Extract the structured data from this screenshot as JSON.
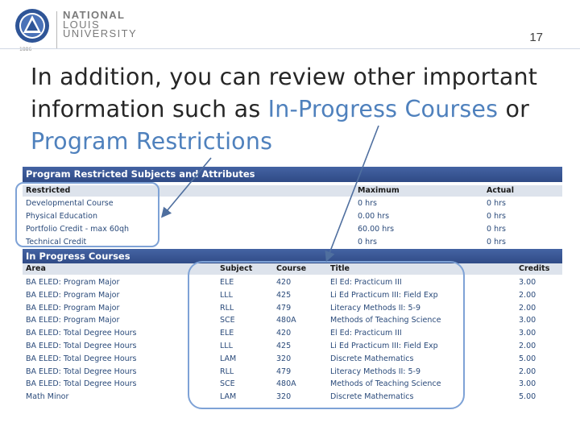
{
  "logo": {
    "line1": "NATIONAL",
    "line2": "LOUIS",
    "line3": "UNIVERSITY",
    "year": "1886",
    "emblem_color": "#2f5597"
  },
  "slide_number": "17",
  "heading": {
    "part1": "In addition, you can review other important information such as ",
    "link1": "In-Progress Courses",
    "part2": " or ",
    "link2": "Program Restrictions",
    "accent_color": "#4f81bd"
  },
  "restricted": {
    "title": "Program Restricted Subjects and Attributes",
    "columns": [
      "Restricted",
      "Maximum",
      "Actual"
    ],
    "rows": [
      {
        "restricted": "Developmental Course",
        "maximum": "0 hrs",
        "actual": "0 hrs"
      },
      {
        "restricted": "Physical Education",
        "maximum": "0.00 hrs",
        "actual": "0 hrs"
      },
      {
        "restricted": "Portfolio Credit - max 60qh",
        "maximum": "60.00 hrs",
        "actual": "0 hrs"
      },
      {
        "restricted": "Technical Credit",
        "maximum": "0 hrs",
        "actual": "0 hrs"
      }
    ]
  },
  "in_progress": {
    "title": "In Progress Courses",
    "columns": [
      "Area",
      "Subject",
      "Course",
      "Title",
      "Credits"
    ],
    "rows": [
      {
        "area": "BA ELED: Program Major",
        "subject": "ELE",
        "course": "420",
        "title": "El Ed: Practicum III",
        "credits": "3.00"
      },
      {
        "area": "BA ELED: Program Major",
        "subject": "LLL",
        "course": "425",
        "title": "Li Ed Practicum III: Field Exp",
        "credits": "2.00"
      },
      {
        "area": "BA ELED: Program Major",
        "subject": "RLL",
        "course": "479",
        "title": "Literacy Methods II: 5-9",
        "credits": "2.00"
      },
      {
        "area": "BA ELED: Program Major",
        "subject": "SCE",
        "course": "480A",
        "title": "Methods of Teaching Science",
        "credits": "3.00"
      },
      {
        "area": "BA ELED: Total Degree Hours",
        "subject": "ELE",
        "course": "420",
        "title": "El Ed: Practicum III",
        "credits": "3.00"
      },
      {
        "area": "BA ELED: Total Degree Hours",
        "subject": "LLL",
        "course": "425",
        "title": "Li Ed Practicum III: Field Exp",
        "credits": "2.00"
      },
      {
        "area": "BA ELED: Total Degree Hours",
        "subject": "LAM",
        "course": "320",
        "title": "Discrete Mathematics",
        "credits": "5.00"
      },
      {
        "area": "BA ELED: Total Degree Hours",
        "subject": "RLL",
        "course": "479",
        "title": "Literacy Methods II: 5-9",
        "credits": "2.00"
      },
      {
        "area": "BA ELED: Total Degree Hours",
        "subject": "SCE",
        "course": "480A",
        "title": "Methods of Teaching Science",
        "credits": "3.00"
      },
      {
        "area": "Math Minor",
        "subject": "LAM",
        "course": "320",
        "title": "Discrete Mathematics",
        "credits": "5.00"
      }
    ]
  }
}
